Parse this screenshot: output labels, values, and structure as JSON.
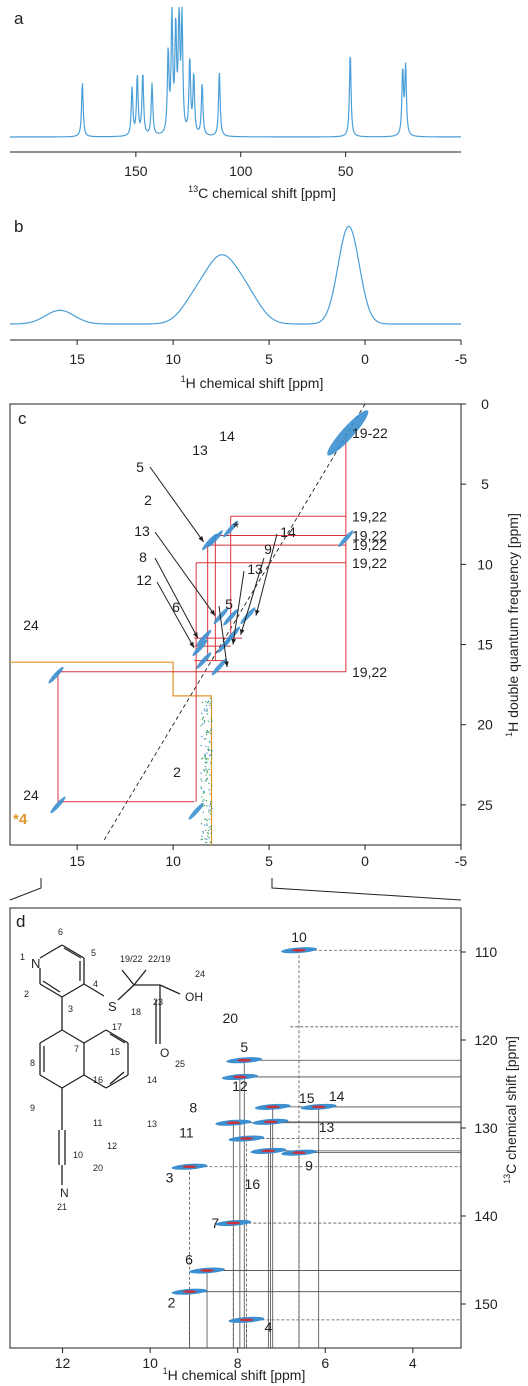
{
  "colors": {
    "spectrum": "#4a9fd8",
    "contour": "#3b8fd0",
    "contour_core": "#c8323c",
    "correlation": "#d8333b",
    "guide": "#4a4a4a",
    "frame": "#231f20",
    "region": "#e0962a",
    "label_blue": "#3a8ccf",
    "noise_green": "#3aa15a"
  },
  "chart_data": [
    {
      "panel": "a",
      "type": "line",
      "xlabel_sup": "13",
      "xlabel": "C chemical shift [ppm]",
      "xlim": [
        210,
        -5
      ],
      "xticks": [
        150,
        100,
        50
      ],
      "peaks": [
        {
          "x": 175.5,
          "h": 0.42
        },
        {
          "x": 151.8,
          "h": 0.37
        },
        {
          "x": 149.3,
          "h": 0.46
        },
        {
          "x": 146.7,
          "h": 0.48
        },
        {
          "x": 142.3,
          "h": 0.4
        },
        {
          "x": 134.6,
          "h": 0.63
        },
        {
          "x": 132.8,
          "h": 0.92
        },
        {
          "x": 131.0,
          "h": 0.8
        },
        {
          "x": 129.4,
          "h": 0.93
        },
        {
          "x": 128.0,
          "h": 0.88
        },
        {
          "x": 124.3,
          "h": 0.58
        },
        {
          "x": 122.4,
          "h": 0.46
        },
        {
          "x": 118.4,
          "h": 0.4
        },
        {
          "x": 110.2,
          "h": 0.5
        },
        {
          "x": 47.8,
          "h": 0.65
        },
        {
          "x": 22.8,
          "h": 0.5
        },
        {
          "x": 21.4,
          "h": 0.53
        }
      ]
    },
    {
      "panel": "b",
      "type": "line",
      "xlabel_sup": "1",
      "xlabel": "H chemical shift [ppm]",
      "xlim": [
        18.5,
        -5
      ],
      "xticks": [
        15,
        10,
        5,
        0,
        -5
      ],
      "components": [
        {
          "x": 15.9,
          "h": 0.13,
          "w": 0.75
        },
        {
          "x": 8.9,
          "h": 0.2,
          "w": 0.7
        },
        {
          "x": 7.7,
          "h": 0.44,
          "w": 0.75
        },
        {
          "x": 6.9,
          "h": 0.26,
          "w": 0.75
        },
        {
          "x": 6.0,
          "h": 0.18,
          "w": 0.7
        },
        {
          "x": 0.85,
          "h": 0.93,
          "w": 0.55
        }
      ]
    },
    {
      "panel": "c",
      "type": "scatter",
      "xlabel": "",
      "ylabel_sup": "1",
      "ylabel": "H double quantum frequency [ppm]",
      "xlim": [
        18.5,
        -5
      ],
      "ylim": [
        0,
        27.5
      ],
      "xticks": [
        15,
        10,
        5,
        0,
        -5
      ],
      "yticks": [
        0,
        5,
        10,
        15,
        20,
        25
      ],
      "diagonal": {
        "from": [
          0,
          0
        ],
        "to": [
          13.6,
          27.2
        ]
      },
      "peaks": [
        {
          "x": 0.9,
          "y": 1.8,
          "label": "19-22"
        },
        {
          "x": 7.0,
          "y": 7.8,
          "label": "14"
        },
        {
          "x": 7.8,
          "y": 8.4,
          "label": "13"
        },
        {
          "x": 8.1,
          "y": 8.6,
          "label": "5"
        },
        {
          "x": 1.0,
          "y": 8.4,
          "label": ""
        },
        {
          "x": 7.5,
          "y": 13.2,
          "label": "13"
        },
        {
          "x": 7.0,
          "y": 13.3,
          "label": "*"
        },
        {
          "x": 6.1,
          "y": 13.2,
          "label": "14"
        },
        {
          "x": 6.9,
          "y": 14.4,
          "label": "9"
        },
        {
          "x": 8.4,
          "y": 14.6,
          "label": "8"
        },
        {
          "x": 7.3,
          "y": 15.0,
          "label": "13"
        },
        {
          "x": 8.6,
          "y": 15.2,
          "label": "12"
        },
        {
          "x": 8.4,
          "y": 16.0,
          "label": "6"
        },
        {
          "x": 7.6,
          "y": 16.4,
          "label": "5"
        },
        {
          "x": 16.1,
          "y": 16.9,
          "label": "24"
        },
        {
          "x": 16.0,
          "y": 25.0,
          "label": "24"
        },
        {
          "x": 8.8,
          "y": 25.4,
          "label": "2"
        }
      ],
      "correlations": {
        "h_lines": [
          {
            "y": 7.0,
            "x1": 7.0,
            "x2": 1.0
          },
          {
            "y": 8.2,
            "x1": 7.8,
            "x2": 1.0
          },
          {
            "y": 8.8,
            "x1": 8.2,
            "x2": 1.0
          },
          {
            "y": 9.9,
            "x1": 8.8,
            "x2": 1.0
          },
          {
            "y": 14.6,
            "x1": 8.9,
            "x2": 6.4
          },
          {
            "y": 15.1,
            "x1": 8.9,
            "x2": 7.0
          },
          {
            "y": 16.0,
            "x1": 8.9,
            "x2": 7.3
          },
          {
            "y": 16.7,
            "x1": 16.0,
            "x2": 1.0
          },
          {
            "y": 24.8,
            "x1": 16.0,
            "x2": 8.9
          }
        ],
        "v_lines": [
          {
            "x": 1.0,
            "y1": 1.8,
            "y2": 16.7
          },
          {
            "x": 7.0,
            "y1": 7.0,
            "y2": 14.6
          },
          {
            "x": 7.8,
            "y1": 8.2,
            "y2": 16.0
          },
          {
            "x": 8.2,
            "y1": 8.8,
            "y2": 16.0
          },
          {
            "x": 8.8,
            "y1": 9.9,
            "y2": 24.8
          },
          {
            "x": 16.0,
            "y1": 16.7,
            "y2": 24.8
          }
        ]
      },
      "right_labels": [
        {
          "y": 1.8,
          "text": "19-22"
        },
        {
          "y": 7.0,
          "text": "19,22"
        },
        {
          "y": 8.2,
          "text": "19,22"
        },
        {
          "y": 8.8,
          "text": "19,22"
        },
        {
          "y": 9.9,
          "text": "19,22"
        },
        {
          "y": 16.7,
          "text": "19,22"
        }
      ],
      "region_label": "*4",
      "annotations": {
        "label_2_upper": "2",
        "label_2_lower": "2"
      }
    },
    {
      "panel": "d",
      "type": "scatter",
      "xlabel_sup": "1",
      "xlabel": "H chemical shift [ppm]",
      "ylabel_sup": "13",
      "ylabel": "C chemical shift [ppm]",
      "xlim": [
        13.2,
        2.9
      ],
      "ylim": [
        105,
        155
      ],
      "xticks": [
        12,
        10,
        8,
        6,
        4
      ],
      "yticks": [
        110,
        120,
        130,
        140,
        150
      ],
      "peaks": [
        {
          "label": "10",
          "h": 6.6,
          "c": 109.8,
          "line": "dashed"
        },
        {
          "label": "20",
          "h": null,
          "c": 118.5,
          "line": "dashed"
        },
        {
          "label": "5",
          "h": 7.85,
          "c": 122.3,
          "line": "solid"
        },
        {
          "label": "12",
          "h": 7.95,
          "c": 124.2,
          "line": "solid"
        },
        {
          "label": "15",
          "h": 7.2,
          "c": 127.6,
          "line": "solid"
        },
        {
          "label": "14",
          "h": 6.15,
          "c": 127.6,
          "line": "solid"
        },
        {
          "label": "8",
          "h": 8.1,
          "c": 129.4,
          "line": "solid"
        },
        {
          "label": "13",
          "h": 7.25,
          "c": 129.3,
          "line": "solid"
        },
        {
          "label": "11",
          "h": 7.8,
          "c": 131.2,
          "line": "dashed"
        },
        {
          "label": "16",
          "h": 7.3,
          "c": 132.6,
          "line": "solid"
        },
        {
          "label": "9",
          "h": 6.6,
          "c": 132.8,
          "line": "solid"
        },
        {
          "label": "3",
          "h": 9.1,
          "c": 134.4,
          "line": "dashed"
        },
        {
          "label": "7",
          "h": 8.1,
          "c": 140.8,
          "line": "dashed"
        },
        {
          "label": "6",
          "h": 8.7,
          "c": 146.2,
          "line": "solid"
        },
        {
          "label": "2",
          "h": 9.1,
          "c": 148.6,
          "line": "solid"
        },
        {
          "label": "4",
          "h": 7.8,
          "c": 151.8,
          "line": "dashed"
        }
      ]
    }
  ],
  "molecule": {
    "atoms": [
      "1",
      "2",
      "3",
      "4",
      "5",
      "6",
      "7",
      "8",
      "9",
      "10",
      "11",
      "12",
      "13",
      "14",
      "15",
      "16",
      "17",
      "18",
      "19/22",
      "22/19",
      "20",
      "21",
      "23",
      "24",
      "25"
    ],
    "N": "N",
    "S": "S",
    "OH": "OH",
    "O": "O"
  },
  "panel_letters": [
    "a",
    "b",
    "c",
    "d"
  ]
}
